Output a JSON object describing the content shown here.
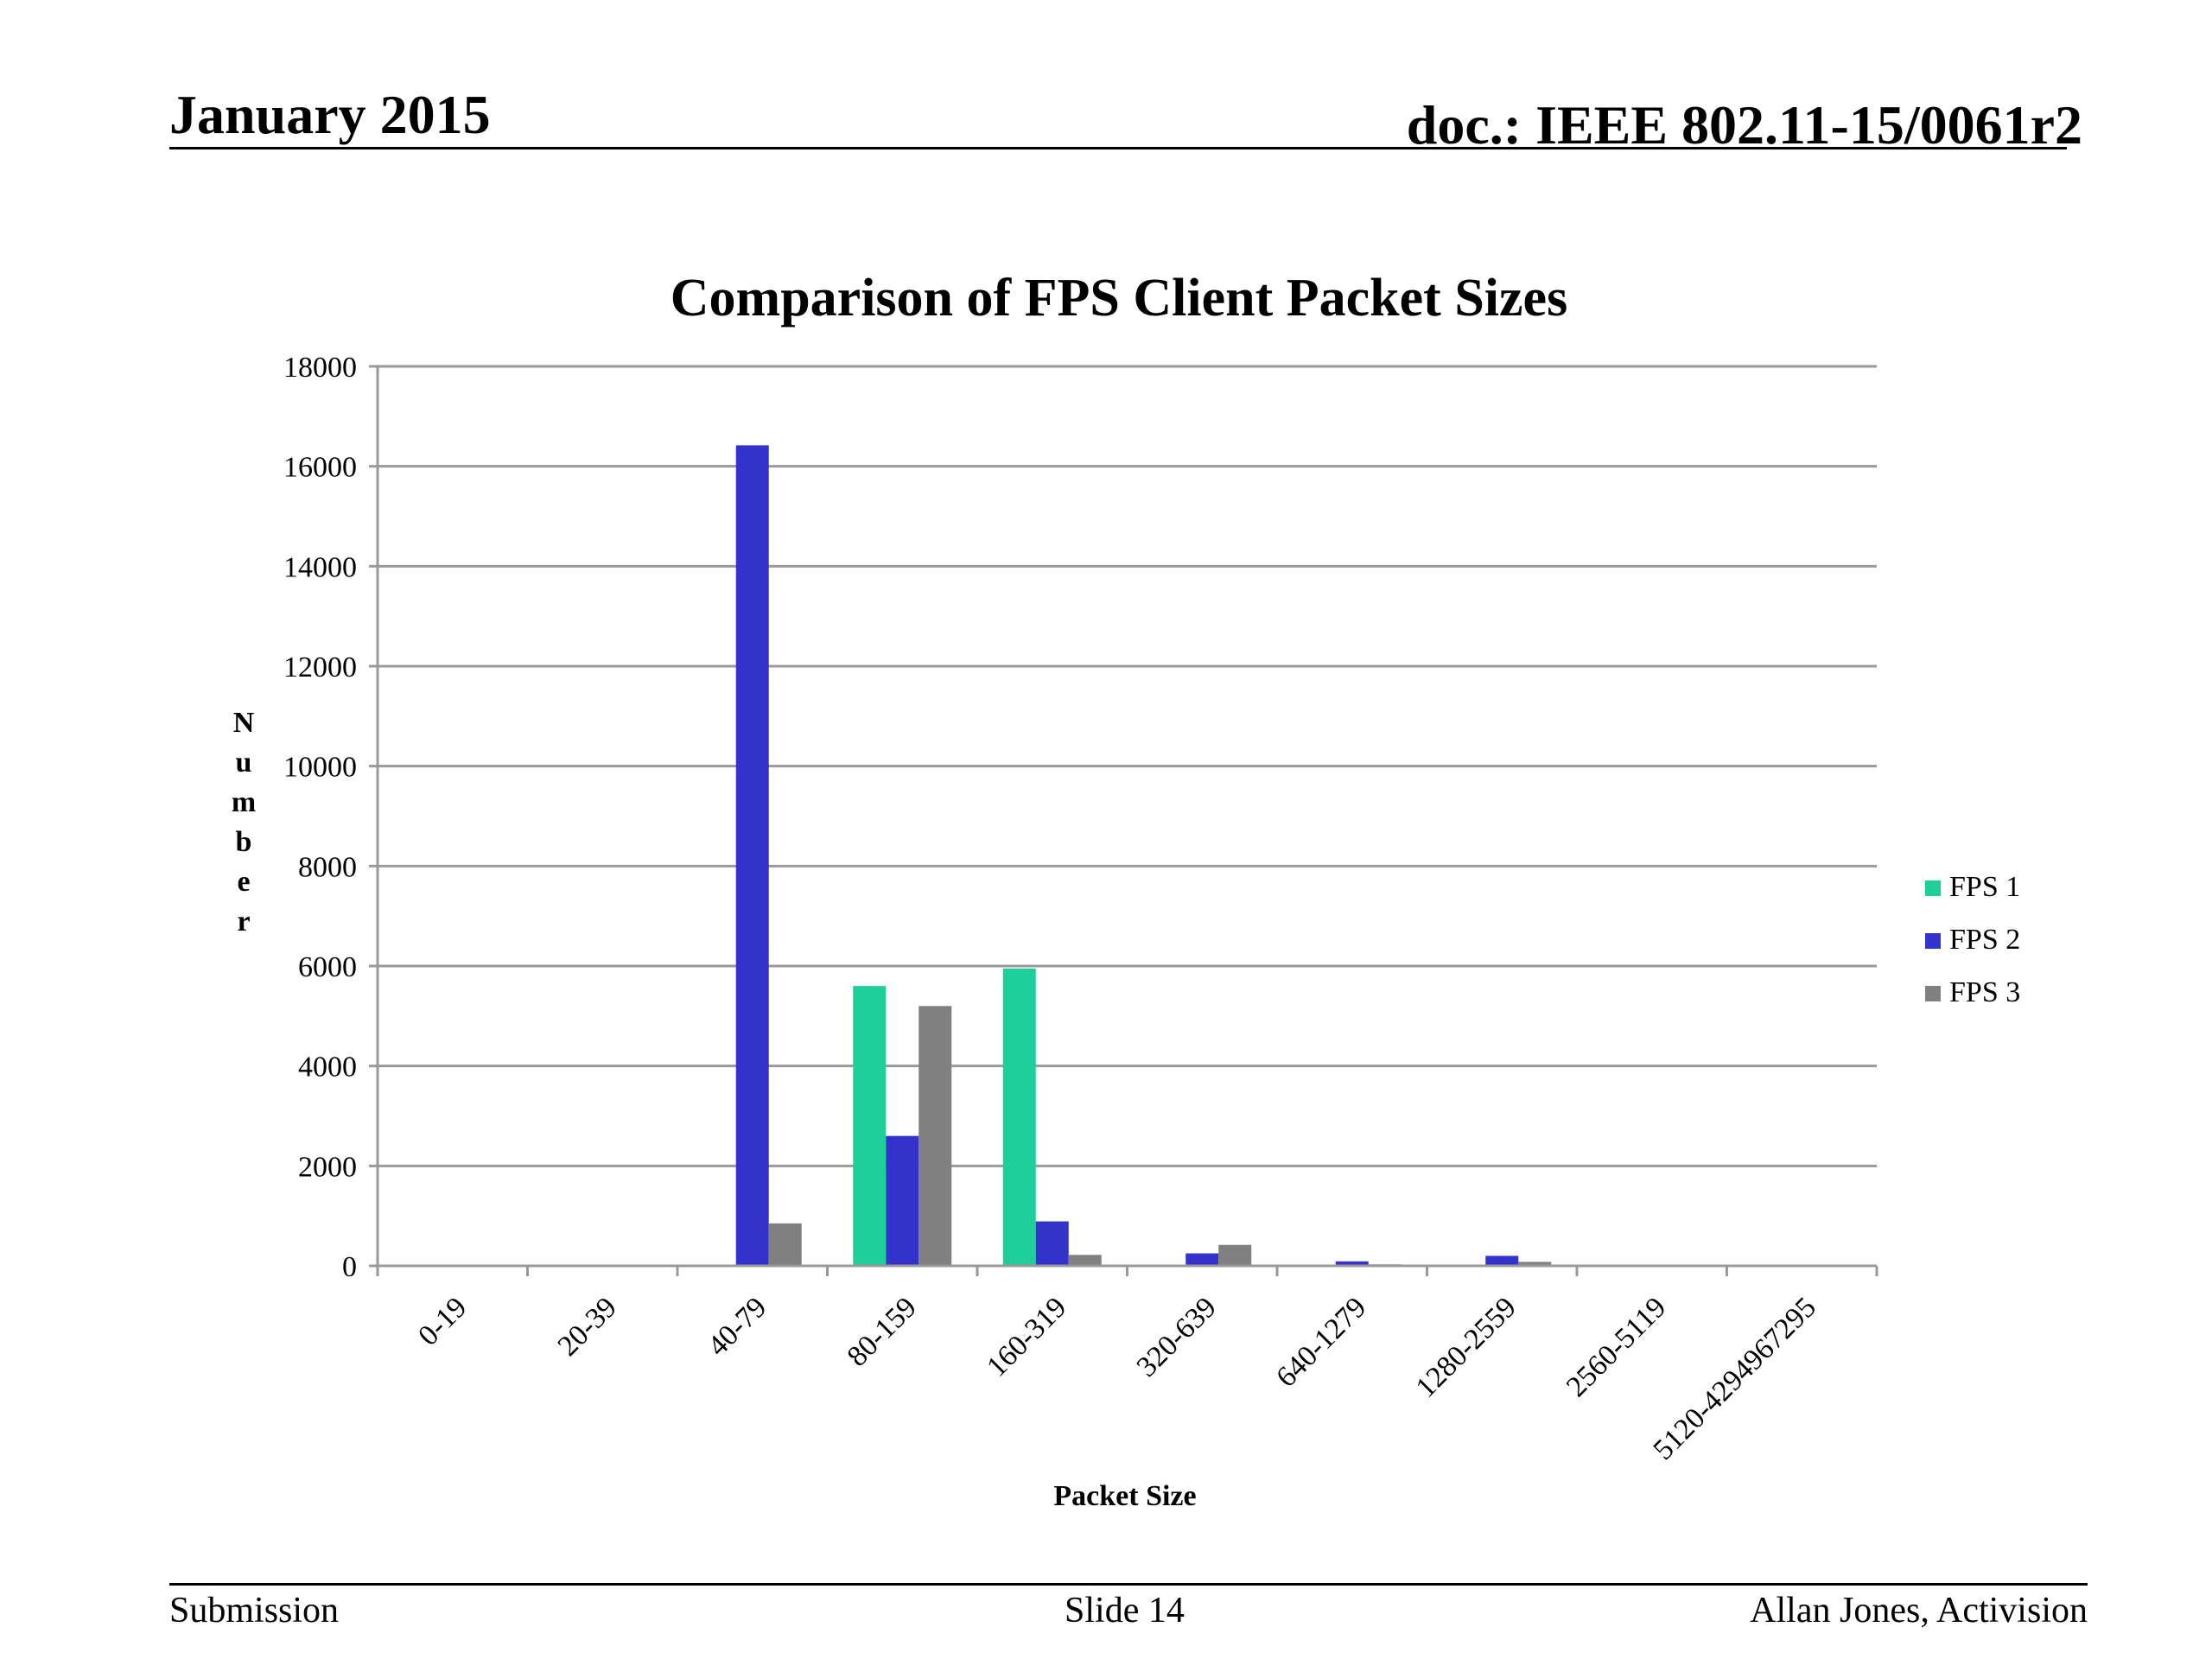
{
  "header": {
    "date": "January 2015",
    "doc": "doc.: IEEE 802.11-15/0061r2"
  },
  "footer": {
    "left": "Submission",
    "center": "Slide 14",
    "right": "Allan Jones,  Activision"
  },
  "chart_data": {
    "type": "bar",
    "title": "Comparison of FPS Client Packet Sizes",
    "xlabel": "Packet Size",
    "ylabel": "Number",
    "ylim": [
      0,
      18000
    ],
    "yticks": [
      0,
      2000,
      4000,
      6000,
      8000,
      10000,
      12000,
      14000,
      16000,
      18000
    ],
    "grid": true,
    "legend_position": "right",
    "categories": [
      "0-19",
      "20-39",
      "40-79",
      "80-159",
      "160-319",
      "320-639",
      "640-1279",
      "1280-2559",
      "2560-5119",
      "5120-4294967295"
    ],
    "series": [
      {
        "name": "FPS 1",
        "color": "#1ecf9a",
        "values": [
          0,
          0,
          10,
          5600,
          5950,
          10,
          20,
          10,
          0,
          0
        ]
      },
      {
        "name": "FPS 2",
        "color": "#3333cc",
        "values": [
          0,
          0,
          16420,
          2600,
          890,
          250,
          90,
          200,
          0,
          0
        ]
      },
      {
        "name": "FPS 3",
        "color": "#808080",
        "values": [
          0,
          0,
          850,
          5200,
          220,
          420,
          30,
          80,
          0,
          0
        ]
      }
    ]
  }
}
